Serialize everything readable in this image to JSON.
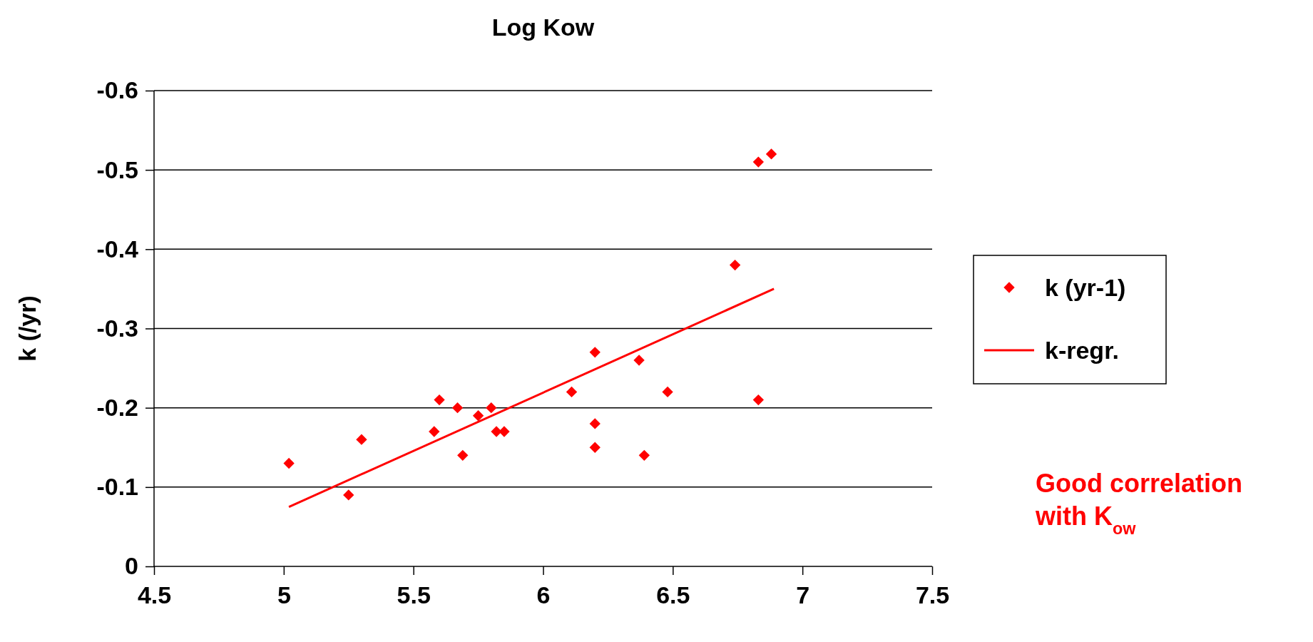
{
  "chart_data": {
    "type": "scatter",
    "title": "Log Kow",
    "ylabel": "k (/yr)",
    "xlim": [
      4.5,
      7.5
    ],
    "xticks": [
      4.5,
      5,
      5.5,
      6,
      6.5,
      7,
      7.5
    ],
    "ylim": [
      0,
      -0.6
    ],
    "yticks": [
      0,
      -0.1,
      -0.2,
      -0.3,
      -0.4,
      -0.5,
      -0.6
    ],
    "grid": "y",
    "legend": "right",
    "series": [
      {
        "name": "k (yr-1)",
        "marker": "diamond",
        "color": "#ff0000",
        "x": [
          5.02,
          5.25,
          5.3,
          5.58,
          5.6,
          5.67,
          5.69,
          5.75,
          5.8,
          5.82,
          5.85,
          6.11,
          6.2,
          6.2,
          6.2,
          6.37,
          6.39,
          6.48,
          6.74,
          6.83,
          6.83,
          6.88
        ],
        "values": [
          -0.13,
          -0.09,
          -0.16,
          -0.17,
          -0.21,
          -0.2,
          -0.14,
          -0.19,
          -0.2,
          -0.17,
          -0.17,
          -0.22,
          -0.27,
          -0.18,
          -0.15,
          -0.26,
          -0.14,
          -0.22,
          -0.38,
          -0.51,
          -0.21,
          -0.52
        ]
      },
      {
        "name": "k-regr.",
        "type": "line",
        "color": "#ff0000",
        "line_style": "solid",
        "x": [
          5.02,
          6.89
        ],
        "values": [
          -0.075,
          -0.35
        ]
      }
    ],
    "annotations": [
      "Good correlation with K$_{ow}$"
    ]
  }
}
